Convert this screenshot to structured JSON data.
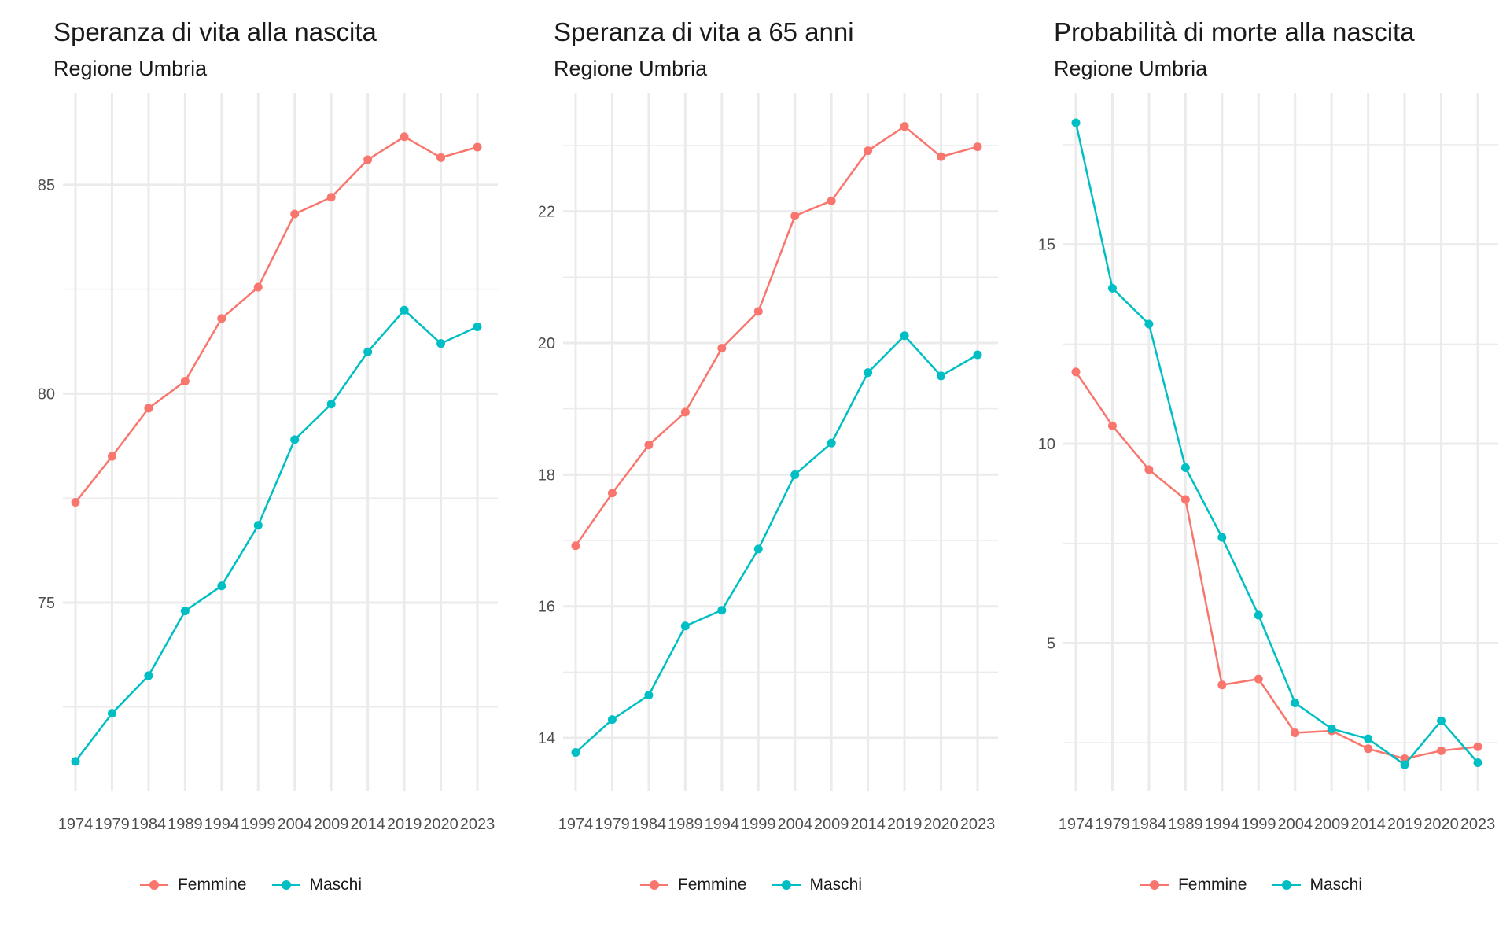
{
  "colors": {
    "femmine": "#F8766D",
    "maschi": "#00BFC4",
    "grid": "#EBEBEB"
  },
  "chart_data": [
    {
      "type": "line",
      "title": "Speranza di vita alla nascita",
      "subtitle": "Regione Umbria",
      "xlabel": "",
      "ylabel": "",
      "x": [
        "1974",
        "1979",
        "1984",
        "1989",
        "1994",
        "1999",
        "2004",
        "2009",
        "2014",
        "2019",
        "2020",
        "2023"
      ],
      "ylim": [
        70.5,
        87.2
      ],
      "y_major_ticks": [
        75,
        80,
        85
      ],
      "y_minor_ticks": [
        72.5,
        77.5,
        82.5
      ],
      "grid": true,
      "legend_position": "bottom",
      "series": [
        {
          "name": "Femmine",
          "values": [
            77.4,
            78.5,
            79.65,
            80.3,
            81.8,
            82.55,
            84.3,
            84.7,
            85.6,
            86.15,
            85.65,
            85.9
          ]
        },
        {
          "name": "Maschi",
          "values": [
            71.2,
            72.35,
            73.25,
            74.8,
            75.4,
            76.85,
            78.9,
            79.75,
            81.0,
            82.0,
            81.2,
            81.6
          ]
        }
      ]
    },
    {
      "type": "line",
      "title": "Speranza di vita a 65 anni",
      "subtitle": "Regione Umbria",
      "xlabel": "",
      "ylabel": "",
      "x": [
        "1974",
        "1979",
        "1984",
        "1989",
        "1994",
        "1999",
        "2004",
        "2009",
        "2014",
        "2019",
        "2020",
        "2023"
      ],
      "ylim": [
        13.2,
        23.8
      ],
      "y_major_ticks": [
        14,
        16,
        18,
        20,
        22
      ],
      "y_minor_ticks": [
        15,
        17,
        19,
        21,
        23
      ],
      "grid": true,
      "legend_position": "bottom",
      "series": [
        {
          "name": "Femmine",
          "values": [
            16.92,
            17.72,
            18.45,
            18.95,
            19.92,
            20.48,
            21.93,
            22.16,
            22.92,
            23.29,
            22.83,
            22.98
          ]
        },
        {
          "name": "Maschi",
          "values": [
            13.78,
            14.28,
            14.65,
            15.7,
            15.94,
            16.87,
            18.0,
            18.48,
            19.55,
            20.11,
            19.5,
            19.82
          ]
        }
      ]
    },
    {
      "type": "line",
      "title": "Probabilità di morte alla nascita",
      "subtitle": "Regione Umbria",
      "xlabel": "",
      "ylabel": "",
      "x": [
        "1974",
        "1979",
        "1984",
        "1989",
        "1994",
        "1999",
        "2004",
        "2009",
        "2014",
        "2019",
        "2020",
        "2023"
      ],
      "ylim": [
        1.3,
        18.8
      ],
      "y_major_ticks": [
        5,
        10,
        15
      ],
      "y_minor_ticks": [
        2.5,
        7.5,
        12.5,
        17.5
      ],
      "grid": true,
      "legend_position": "bottom",
      "series": [
        {
          "name": "Femmine",
          "values": [
            11.8,
            10.45,
            9.35,
            8.6,
            3.95,
            4.1,
            2.75,
            2.8,
            2.35,
            2.1,
            2.3,
            2.4
          ]
        },
        {
          "name": "Maschi",
          "values": [
            18.05,
            13.9,
            13.0,
            9.4,
            7.65,
            5.7,
            3.5,
            2.85,
            2.6,
            1.95,
            3.05,
            2.0
          ]
        }
      ]
    }
  ]
}
